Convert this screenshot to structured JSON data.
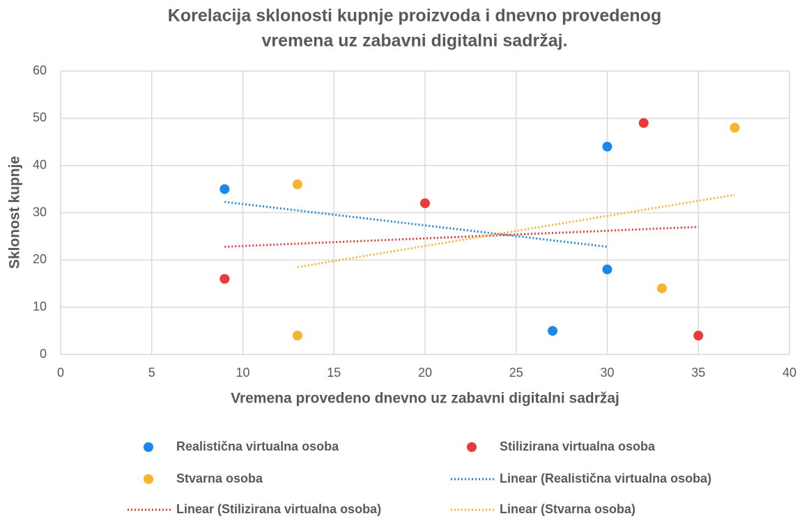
{
  "chart_data": {
    "type": "scatter",
    "title": [
      "Korelacija sklonosti kupnje proizvoda i dnevno provedenog",
      "vremena uz zabavni digitalni sadržaj."
    ],
    "x_label": "Vremena provedeno dnevno uz zabavni digitalni sadržaj",
    "y_label": "Sklonost kupnje",
    "xlim": [
      0,
      40
    ],
    "xticks": [
      0,
      5,
      10,
      15,
      20,
      25,
      30,
      35,
      40
    ],
    "ylim": [
      0,
      60
    ],
    "yticks": [
      0,
      10,
      20,
      30,
      40,
      50,
      60
    ],
    "grid": true,
    "series": [
      {
        "name": "Realistična virtualna osoba",
        "color": "#1a88e8",
        "x": [
          9,
          30,
          30,
          27
        ],
        "values": [
          35,
          44,
          18,
          5
        ]
      },
      {
        "name": "Stilizirana virtualna osoba",
        "color": "#ea3b3b",
        "x": [
          9,
          20,
          32,
          35
        ],
        "values": [
          16,
          32,
          49,
          4
        ]
      },
      {
        "name": "Stvarna osoba",
        "color": "#f7b52c",
        "x": [
          13,
          13,
          33,
          37
        ],
        "values": [
          36,
          4,
          14,
          48
        ]
      }
    ],
    "trendlines": [
      {
        "name": "Linear (Realistična virtualna osoba)",
        "color": "#1a88e8",
        "x": [
          9,
          30
        ],
        "values": [
          32.3,
          22.8
        ]
      },
      {
        "name": "Linear (Stilizirana virtualna osoba)",
        "color": "#ea3b3b",
        "x": [
          9,
          35
        ],
        "values": [
          22.8,
          27
        ]
      },
      {
        "name": "Linear (Stvarna osoba)",
        "color": "#f7b52c",
        "x": [
          13,
          37
        ],
        "values": [
          18.5,
          33.8
        ]
      }
    ]
  }
}
